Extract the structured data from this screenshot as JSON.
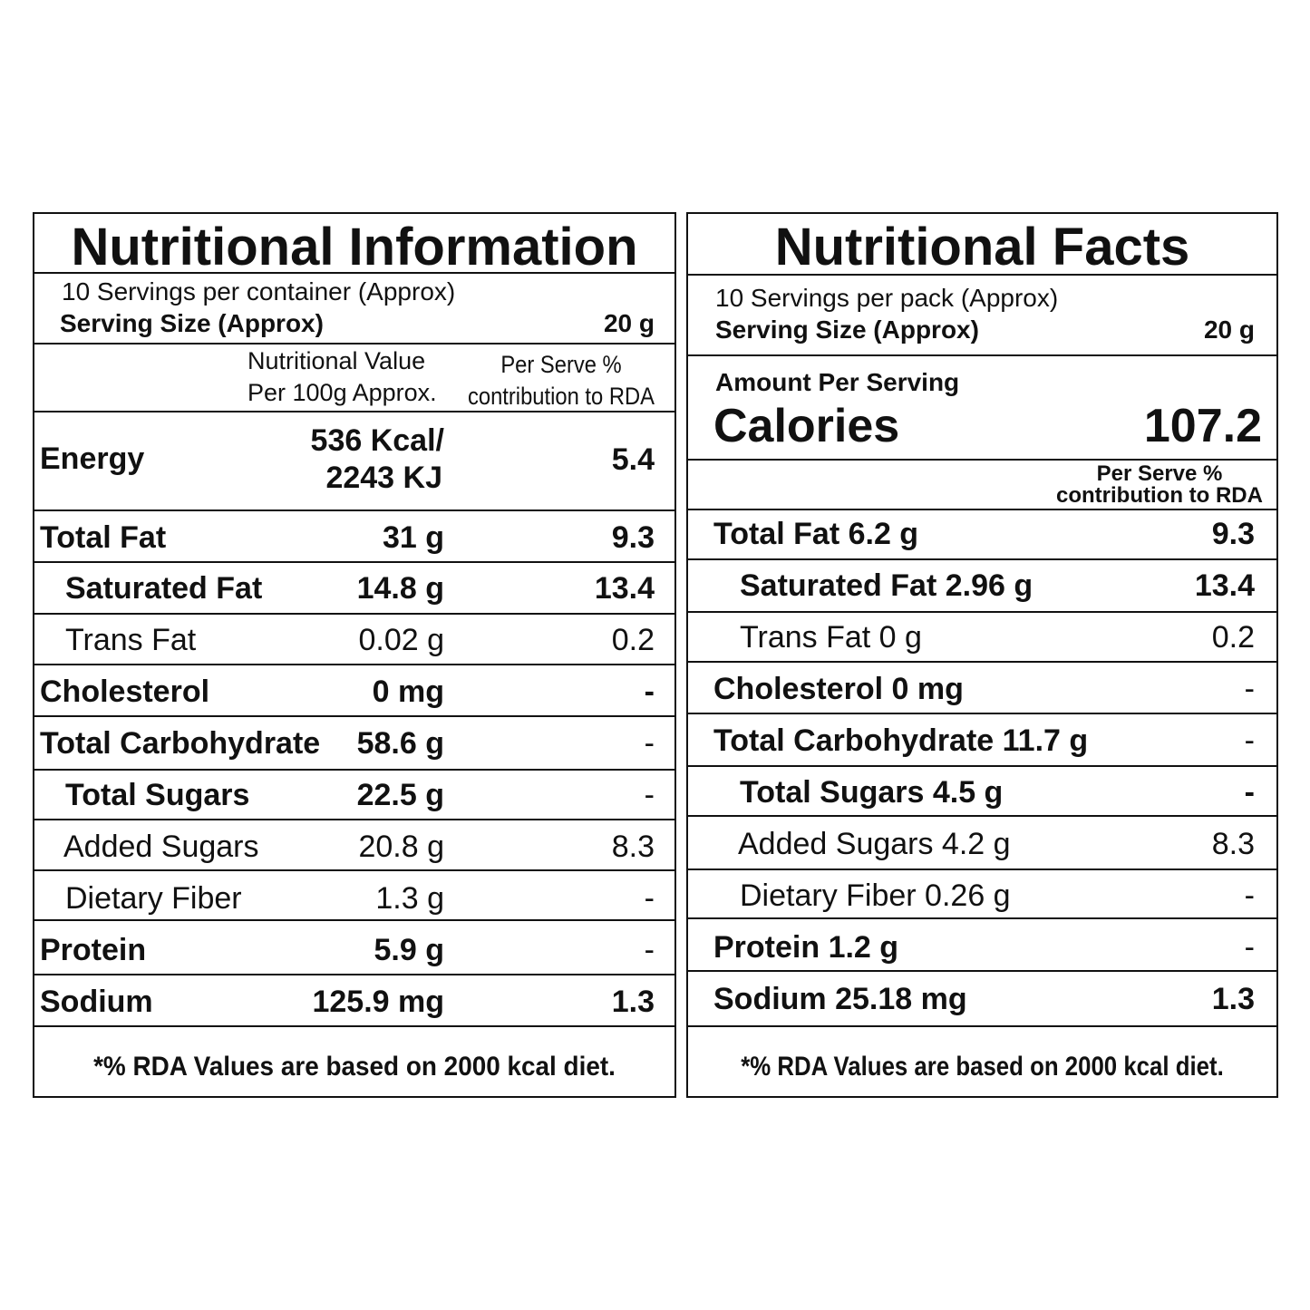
{
  "left": {
    "title": "Nutritional Information",
    "servings_line": "10 Servings per container (Approx)",
    "serving_size_label": "Serving Size (Approx)",
    "serving_size_value": "20 g",
    "col_value_1": "Nutritional Value",
    "col_value_2": "Per 100g Approx.",
    "col_rda_1": "Per Serve %",
    "col_rda_2": "contribution to RDA",
    "rows": [
      {
        "label": "Energy",
        "value_1": "536 Kcal/",
        "value_2": "2243 KJ",
        "rda": "5.4"
      },
      {
        "label": "Total Fat",
        "value": "31 g",
        "rda": "9.3"
      },
      {
        "label": "Saturated Fat",
        "value": "14.8 g",
        "rda": "13.4"
      },
      {
        "label": "Trans Fat",
        "value": "0.02 g",
        "rda": "0.2"
      },
      {
        "label": "Cholesterol",
        "value": "0 mg",
        "rda": "-"
      },
      {
        "label": "Total Carbohydrate",
        "value": "58.6 g",
        "rda": "-"
      },
      {
        "label": "Total Sugars",
        "value": "22.5 g",
        "rda": "-"
      },
      {
        "label": "Added Sugars",
        "value": "20.8 g",
        "rda": "8.3"
      },
      {
        "label": "Dietary Fiber",
        "value": "1.3 g",
        "rda": "-"
      },
      {
        "label": "Protein",
        "value": "5.9 g",
        "rda": "-"
      },
      {
        "label": "Sodium",
        "value": "125.9 mg",
        "rda": "1.3"
      }
    ],
    "footnote": "*% RDA Values are based on 2000 kcal diet."
  },
  "right": {
    "title": "Nutritional Facts",
    "servings_line": "10 Servings per pack (Approx)",
    "serving_size_label": "Serving Size (Approx)",
    "serving_size_value": "20 g",
    "amount_per_serving": "Amount Per Serving",
    "calories_label": "Calories",
    "calories_value": "107.2",
    "col_rda_1": "Per Serve %",
    "col_rda_2": "contribution to RDA",
    "rows": [
      {
        "label": "Total Fat 6.2 g",
        "rda": "9.3"
      },
      {
        "label": "Saturated Fat 2.96 g",
        "rda": "13.4"
      },
      {
        "label": "Trans Fat 0 g",
        "rda": "0.2"
      },
      {
        "label": "Cholesterol 0 mg",
        "rda": "-"
      },
      {
        "label": "Total Carbohydrate 11.7 g",
        "rda": "-"
      },
      {
        "label": "Total Sugars 4.5 g",
        "rda": "-"
      },
      {
        "label": "Added Sugars 4.2 g",
        "rda": "8.3"
      },
      {
        "label": "Dietary Fiber 0.26 g",
        "rda": "-"
      },
      {
        "label": "Protein 1.2 g",
        "rda": "-"
      },
      {
        "label": "Sodium 25.18 mg",
        "rda": "1.3"
      }
    ],
    "footnote": "*% RDA Values are based on 2000 kcal diet."
  }
}
